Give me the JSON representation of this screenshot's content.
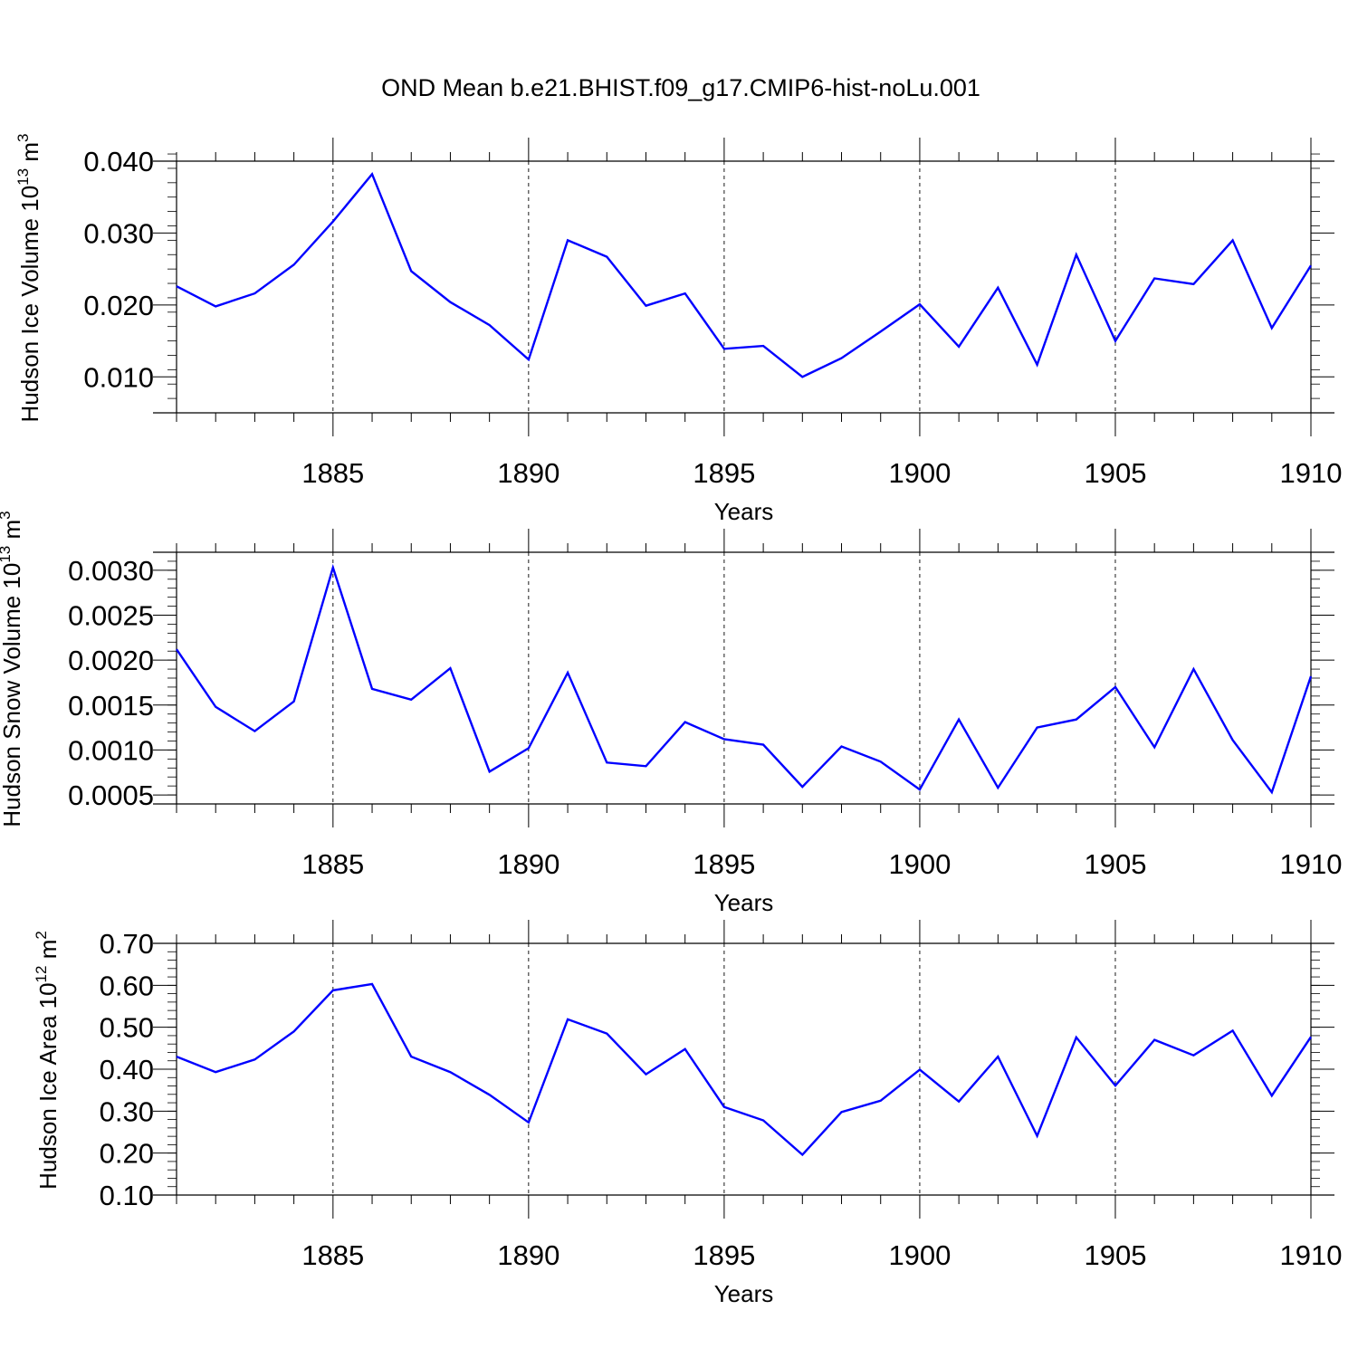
{
  "title": "OND Mean b.e21.BHIST.f09_g17.CMIP6-hist-noLu.001",
  "colors": {
    "series": "#0000ff",
    "axes": "#000000",
    "grid": "#000000"
  },
  "chart_data": [
    {
      "type": "line",
      "name": "ice-volume",
      "ylabel_main": "Hudson Ice Volume 10",
      "ylabel_exp": "13",
      "ylabel_unit": "m",
      "ylabel_unit_exp": "3",
      "xlabel": "Years",
      "xlim": [
        1881,
        1910
      ],
      "ylim": [
        0.005,
        0.04
      ],
      "xticks": [
        1885,
        1890,
        1895,
        1900,
        1905,
        1910
      ],
      "xtick_labels": [
        "1885",
        "1890",
        "1895",
        "1900",
        "1905",
        "1910"
      ],
      "yticks": [
        0.01,
        0.02,
        0.03,
        0.04
      ],
      "ytick_labels": [
        "0.010",
        "0.020",
        "0.030",
        "0.040"
      ],
      "yminor_step": 0.002,
      "x": [
        1881,
        1882,
        1883,
        1884,
        1885,
        1886,
        1887,
        1888,
        1889,
        1890,
        1891,
        1892,
        1893,
        1894,
        1895,
        1896,
        1897,
        1898,
        1899,
        1900,
        1901,
        1902,
        1903,
        1904,
        1905,
        1906,
        1907,
        1908,
        1909,
        1910
      ],
      "values": [
        0.0226,
        0.0198,
        0.0216,
        0.0256,
        0.0316,
        0.0382,
        0.0247,
        0.0204,
        0.0172,
        0.0124,
        0.029,
        0.0267,
        0.0199,
        0.0216,
        0.0139,
        0.0143,
        0.01,
        0.0126,
        0.0163,
        0.0201,
        0.0142,
        0.0224,
        0.0117,
        0.027,
        0.015,
        0.0237,
        0.0229,
        0.029,
        0.0168,
        0.0255
      ]
    },
    {
      "type": "line",
      "name": "snow-volume",
      "ylabel_main": "Hudson Snow Volume 10",
      "ylabel_exp": "13",
      "ylabel_unit": "m",
      "ylabel_unit_exp": "3",
      "xlabel": "Years",
      "xlim": [
        1881,
        1910
      ],
      "ylim": [
        0.0004,
        0.0032
      ],
      "xticks": [
        1885,
        1890,
        1895,
        1900,
        1905,
        1910
      ],
      "xtick_labels": [
        "1885",
        "1890",
        "1895",
        "1900",
        "1905",
        "1910"
      ],
      "yticks": [
        0.0005,
        0.001,
        0.0015,
        0.002,
        0.0025,
        0.003
      ],
      "ytick_labels": [
        "0.0005",
        "0.0010",
        "0.0015",
        "0.0020",
        "0.0025",
        "0.0030"
      ],
      "yminor_step": 0.0001,
      "x": [
        1881,
        1882,
        1883,
        1884,
        1885,
        1886,
        1887,
        1888,
        1889,
        1890,
        1891,
        1892,
        1893,
        1894,
        1895,
        1896,
        1897,
        1898,
        1899,
        1900,
        1901,
        1902,
        1903,
        1904,
        1905,
        1906,
        1907,
        1908,
        1909,
        1910
      ],
      "values": [
        0.00212,
        0.00148,
        0.00121,
        0.00154,
        0.00303,
        0.00168,
        0.00156,
        0.00191,
        0.00076,
        0.00102,
        0.00186,
        0.00086,
        0.00082,
        0.00131,
        0.00112,
        0.00106,
        0.00059,
        0.00104,
        0.00087,
        0.00056,
        0.00134,
        0.00058,
        0.00125,
        0.00134,
        0.0017,
        0.00103,
        0.0019,
        0.00111,
        0.00053,
        0.00182
      ]
    },
    {
      "type": "line",
      "name": "ice-area",
      "ylabel_main": "Hudson Ice Area 10",
      "ylabel_exp": "12",
      "ylabel_unit": "m",
      "ylabel_unit_exp": "2",
      "xlabel": "Years",
      "xlim": [
        1881,
        1910
      ],
      "ylim": [
        0.1,
        0.7
      ],
      "xticks": [
        1885,
        1890,
        1895,
        1900,
        1905,
        1910
      ],
      "xtick_labels": [
        "1885",
        "1890",
        "1895",
        "1900",
        "1905",
        "1910"
      ],
      "yticks": [
        0.1,
        0.2,
        0.3,
        0.4,
        0.5,
        0.6,
        0.7
      ],
      "ytick_labels": [
        "0.10",
        "0.20",
        "0.30",
        "0.40",
        "0.50",
        "0.60",
        "0.70"
      ],
      "yminor_step": 0.02,
      "x": [
        1881,
        1882,
        1883,
        1884,
        1885,
        1886,
        1887,
        1888,
        1889,
        1890,
        1891,
        1892,
        1893,
        1894,
        1895,
        1896,
        1897,
        1898,
        1899,
        1900,
        1901,
        1902,
        1903,
        1904,
        1905,
        1906,
        1907,
        1908,
        1909,
        1910
      ],
      "values": [
        0.43,
        0.393,
        0.423,
        0.49,
        0.588,
        0.603,
        0.43,
        0.393,
        0.339,
        0.273,
        0.519,
        0.485,
        0.388,
        0.448,
        0.31,
        0.278,
        0.196,
        0.298,
        0.325,
        0.399,
        0.323,
        0.43,
        0.241,
        0.476,
        0.361,
        0.47,
        0.433,
        0.492,
        0.337,
        0.477
      ]
    }
  ]
}
